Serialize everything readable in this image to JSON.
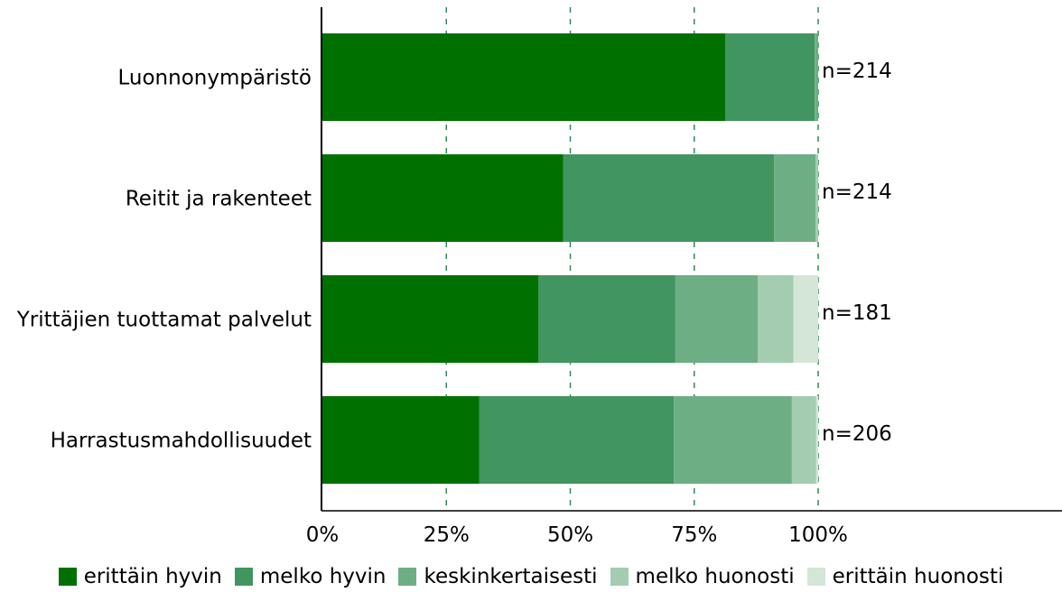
{
  "chart_data": {
    "type": "bar",
    "orientation": "horizontal",
    "stacked": true,
    "categories": [
      "Luonnonympäristö",
      "Reitit ja rakenteet",
      "Yrittäjien tuottamat palvelut",
      "Harrastusmahdollisuudet"
    ],
    "counts": [
      "n=214",
      "n=214",
      "n=181",
      "n=206"
    ],
    "series": [
      {
        "name": "erittäin hyvin",
        "color": "#007000",
        "values": [
          81.3,
          48.6,
          43.6,
          31.6
        ]
      },
      {
        "name": "melko hyvin",
        "color": "#419560",
        "values": [
          18.0,
          42.5,
          27.6,
          39.3
        ]
      },
      {
        "name": "keskinkertaisesti",
        "color": "#6eae84",
        "values": [
          0.7,
          8.4,
          16.6,
          23.8
        ]
      },
      {
        "name": "melko huonosti",
        "color": "#a3ccb0",
        "values": [
          0,
          0.5,
          7.2,
          4.9
        ]
      },
      {
        "name": "erittäin huonosti",
        "color": "#d3e6d8",
        "values": [
          0,
          0,
          5.0,
          0.4
        ]
      }
    ],
    "xlim": [
      0,
      100
    ],
    "xticks": [
      "0%",
      "25%",
      "50%",
      "75%",
      "100%"
    ],
    "grid": "vertical dashed",
    "legend_position": "bottom"
  }
}
